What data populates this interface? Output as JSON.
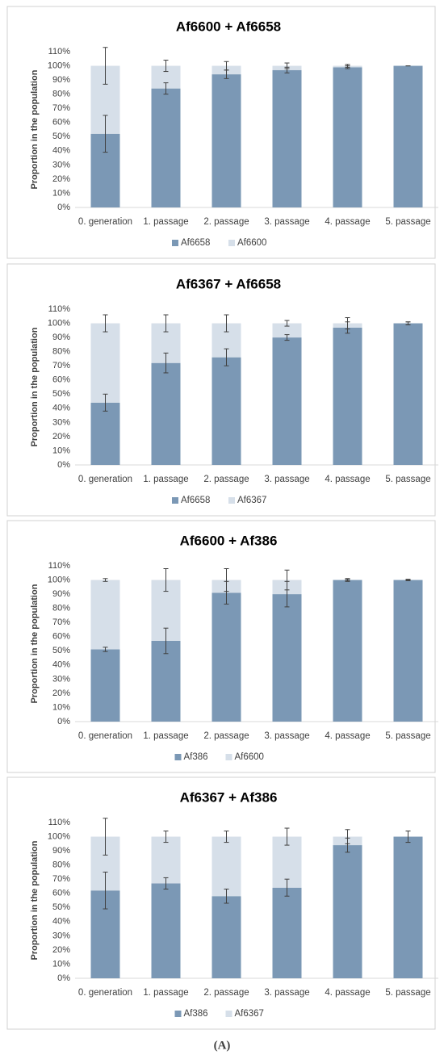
{
  "chart_data": [
    {
      "type": "bar",
      "stacked": true,
      "title": "Af6600 + Af6658",
      "y_label": "Proportion in the population",
      "categories": [
        "0. generation",
        "1. passage",
        "2. passage",
        "3. passage",
        "4. passage",
        "5. passage"
      ],
      "series": [
        {
          "name": "Af6658",
          "color": "#7b98b5",
          "values": [
            52,
            84,
            94,
            97,
            99,
            100
          ],
          "errors": [
            13,
            4,
            3,
            2,
            1,
            0
          ]
        },
        {
          "name": "Af6600",
          "color": "#d6dfe9",
          "values": [
            48,
            16,
            6,
            3,
            1,
            0
          ],
          "errors": [
            13,
            4,
            3,
            2,
            1,
            0
          ]
        }
      ],
      "ylim": [
        0,
        110
      ],
      "yticks": [
        {
          "value": 0,
          "label": "0%"
        },
        {
          "value": 10,
          "label": "10%"
        },
        {
          "value": 20,
          "label": "20%"
        },
        {
          "value": 30,
          "label": "30%"
        },
        {
          "value": 40,
          "label": "40%"
        },
        {
          "value": 50,
          "label": "50%"
        },
        {
          "value": 60,
          "label": "60%"
        },
        {
          "value": 70,
          "label": "70%"
        },
        {
          "value": 80,
          "label": "80%"
        },
        {
          "value": 90,
          "label": "90%"
        },
        {
          "value": 100,
          "label": "100%"
        },
        {
          "value": 110,
          "label": "110%"
        }
      ],
      "grid": false,
      "legend": "bottom"
    },
    {
      "type": "bar",
      "stacked": true,
      "title": "Af6367 + Af6658",
      "y_label": "Proportion in the population",
      "categories": [
        "0. generation",
        "1. passage",
        "2. passage",
        "3. passage",
        "4. passage",
        "5. passage"
      ],
      "series": [
        {
          "name": "Af6658",
          "color": "#7b98b5",
          "values": [
            44,
            72,
            76,
            90,
            97,
            100
          ],
          "errors": [
            6,
            7,
            6,
            2,
            4,
            1
          ]
        },
        {
          "name": "Af6367",
          "color": "#d6dfe9",
          "values": [
            56,
            28,
            24,
            10,
            3,
            0
          ],
          "errors": [
            6,
            6,
            6,
            2,
            4,
            1
          ]
        }
      ],
      "ylim": [
        0,
        110
      ],
      "yticks": [
        {
          "value": 0,
          "label": "0%"
        },
        {
          "value": 10,
          "label": "10%"
        },
        {
          "value": 20,
          "label": "20%"
        },
        {
          "value": 30,
          "label": "30%"
        },
        {
          "value": 40,
          "label": "40%"
        },
        {
          "value": 50,
          "label": "50%"
        },
        {
          "value": 60,
          "label": "60%"
        },
        {
          "value": 70,
          "label": "70%"
        },
        {
          "value": 80,
          "label": "80%"
        },
        {
          "value": 90,
          "label": "90%"
        },
        {
          "value": 100,
          "label": "100%"
        },
        {
          "value": 110,
          "label": "110%"
        }
      ],
      "grid": false,
      "legend": "bottom"
    },
    {
      "type": "bar",
      "stacked": true,
      "title": "Af6600 + Af386",
      "y_label": "Proportion in the population",
      "categories": [
        "0. generation",
        "1. passage",
        "2. passage",
        "3. passage",
        "4. passage",
        "5. passage"
      ],
      "series": [
        {
          "name": "Af386",
          "color": "#7b98b5",
          "values": [
            51,
            57,
            91,
            90,
            100,
            100
          ],
          "errors": [
            1.5,
            9,
            8,
            9,
            1,
            0.5
          ]
        },
        {
          "name": "Af6600",
          "color": "#d6dfe9",
          "values": [
            49,
            43,
            9,
            10,
            0,
            0
          ],
          "errors": [
            1,
            8,
            8,
            7,
            0.5,
            0
          ]
        }
      ],
      "ylim": [
        0,
        110
      ],
      "yticks": [
        {
          "value": 0,
          "label": "0%"
        },
        {
          "value": 10,
          "label": "10%"
        },
        {
          "value": 20,
          "label": "20%"
        },
        {
          "value": 30,
          "label": "30%"
        },
        {
          "value": 40,
          "label": "40%"
        },
        {
          "value": 50,
          "label": "50%"
        },
        {
          "value": 60,
          "label": "60%"
        },
        {
          "value": 70,
          "label": "70%"
        },
        {
          "value": 80,
          "label": "80%"
        },
        {
          "value": 90,
          "label": "90%"
        },
        {
          "value": 100,
          "label": "100%"
        },
        {
          "value": 110,
          "label": "110%"
        }
      ],
      "grid": false,
      "legend": "bottom"
    },
    {
      "type": "bar",
      "stacked": true,
      "title": "Af6367 + Af386",
      "y_label": "Proportion in the population",
      "categories": [
        "0. generation",
        "1. passage",
        "2. passage",
        "3. passage",
        "4. passage",
        "5. passage"
      ],
      "series": [
        {
          "name": "Af386",
          "color": "#7b98b5",
          "values": [
            62,
            67,
            58,
            64,
            94,
            100
          ],
          "errors": [
            13,
            4,
            5,
            6,
            5,
            4
          ]
        },
        {
          "name": "Af6367",
          "color": "#d6dfe9",
          "values": [
            38,
            33,
            42,
            36,
            6,
            0
          ],
          "errors": [
            13,
            4,
            4,
            6,
            5,
            4
          ]
        }
      ],
      "ylim": [
        0,
        110
      ],
      "yticks": [
        {
          "value": 0,
          "label": "0%"
        },
        {
          "value": 10,
          "label": "10%"
        },
        {
          "value": 20,
          "label": "20%"
        },
        {
          "value": 30,
          "label": "30%"
        },
        {
          "value": 40,
          "label": "40%"
        },
        {
          "value": 50,
          "label": "50%"
        },
        {
          "value": 60,
          "label": "60%"
        },
        {
          "value": 70,
          "label": "70%"
        },
        {
          "value": 80,
          "label": "80%"
        },
        {
          "value": 90,
          "label": "90%"
        },
        {
          "value": 100,
          "label": "100%"
        },
        {
          "value": 110,
          "label": "110%"
        }
      ],
      "grid": false,
      "legend": "bottom"
    }
  ],
  "caption": "(A)"
}
